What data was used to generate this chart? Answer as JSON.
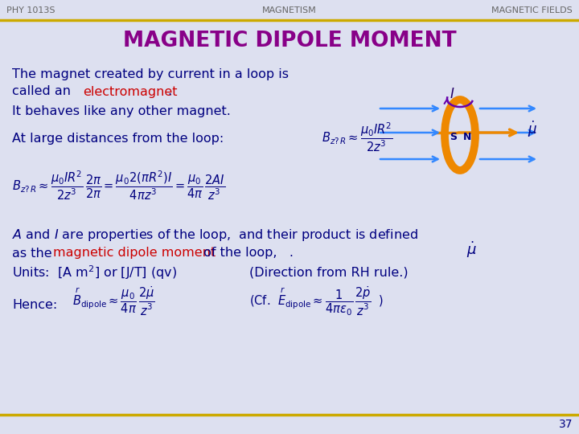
{
  "bg_color": "#dde0f0",
  "header_left": "PHY 1013S",
  "header_center": "MAGNETISM",
  "header_right": "MAGNETIC FIELDS",
  "header_color": "#666666",
  "header_fontsize": 8,
  "gold_line_color": "#ccaa00",
  "title": "MAGNETIC DIPOLE MOMENT",
  "title_color": "#880088",
  "title_fontsize": 19,
  "body_color": "#000080",
  "red_color": "#cc0000",
  "orange_color": "#ee8800",
  "blue_arrow_color": "#3388ff",
  "purple_color": "#6600aa",
  "page_number": "37",
  "main_fontsize": 11.5,
  "formula_fontsize": 10.5
}
